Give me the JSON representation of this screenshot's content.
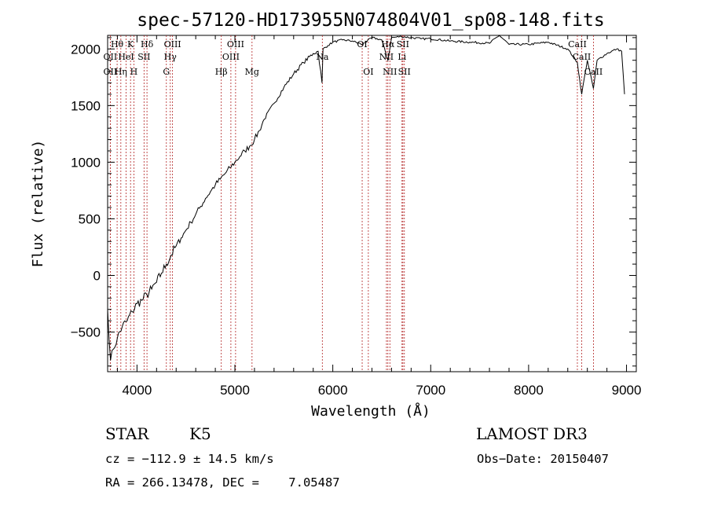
{
  "chart_data": {
    "type": "line",
    "title": "spec-57120-HD173955N074804V01_sp08-148.fits",
    "xlabel": "Wavelength (Å)",
    "ylabel": "Flux (relative)",
    "xlim": [
      3700,
      9100
    ],
    "ylim": [
      -850,
      2120
    ],
    "x_ticks": [
      4000,
      5000,
      6000,
      7000,
      8000,
      9000
    ],
    "y_ticks": [
      -500,
      0,
      500,
      1000,
      1500,
      2000
    ],
    "grid": false,
    "line_color": "#000000",
    "marker_color": "#b22222",
    "series": [
      {
        "x": [
          3700,
          3730,
          3760,
          3800,
          3850,
          3900,
          3950,
          4000,
          4050,
          4100,
          4150,
          4200,
          4250,
          4300,
          4350,
          4400,
          4450,
          4500,
          4550,
          4600,
          4650,
          4700,
          4750,
          4800,
          4850,
          4900,
          4950,
          5000,
          5050,
          5100,
          5150,
          5200,
          5250,
          5300,
          5400,
          5500,
          5600,
          5700,
          5800,
          5850,
          5890,
          5900,
          5950,
          6000,
          6100,
          6200,
          6300,
          6400,
          6500,
          6563,
          6600,
          6700,
          6800,
          6900,
          7000,
          7200,
          7400,
          7600,
          7700,
          7800,
          8000,
          8200,
          8400,
          8498,
          8542,
          8600,
          8662,
          8700,
          8800,
          8900,
          8950,
          8980
        ],
        "y": [
          -300,
          -750,
          -650,
          -550,
          -450,
          -400,
          -320,
          -250,
          -220,
          -170,
          -120,
          -60,
          20,
          100,
          180,
          260,
          330,
          400,
          470,
          540,
          610,
          680,
          740,
          800,
          850,
          900,
          950,
          1000,
          1050,
          1100,
          1140,
          1200,
          1280,
          1380,
          1520,
          1660,
          1780,
          1880,
          1960,
          1980,
          1700,
          2000,
          2030,
          2060,
          2080,
          2070,
          2040,
          2100,
          2080,
          1900,
          2100,
          2110,
          2100,
          2090,
          2090,
          2070,
          2060,
          2050,
          2120,
          2040,
          2040,
          2060,
          2000,
          1880,
          1600,
          1900,
          1650,
          1900,
          1960,
          2000,
          1980,
          1600
        ]
      }
    ],
    "line_ids": [
      {
        "x": 3797,
        "label": "Hθ",
        "row": 0
      },
      {
        "x": 3727,
        "label": "OII",
        "row": 1
      },
      {
        "x": 3727,
        "label": "OII",
        "row": 2
      },
      {
        "x": 3835,
        "label": "Hη",
        "row": 2
      },
      {
        "x": 3889,
        "label": "HeI",
        "row": 1
      },
      {
        "x": 3934,
        "label": "K",
        "row": 0
      },
      {
        "x": 3968,
        "label": "H",
        "row": 2
      },
      {
        "x": 4072,
        "label": "SII",
        "row": 1
      },
      {
        "x": 4102,
        "label": "Hδ",
        "row": 0
      },
      {
        "x": 4300,
        "label": "G",
        "row": 2
      },
      {
        "x": 4340,
        "label": "Hγ",
        "row": 1
      },
      {
        "x": 4363,
        "label": "OIII",
        "row": 0
      },
      {
        "x": 4861,
        "label": "Hβ",
        "row": 2
      },
      {
        "x": 4959,
        "label": "OIII",
        "row": 1
      },
      {
        "x": 5007,
        "label": "OIII",
        "row": 0
      },
      {
        "x": 5175,
        "label": "Mg",
        "row": 2
      },
      {
        "x": 5893,
        "label": "Na",
        "row": 1
      },
      {
        "x": 6300,
        "label": "OI",
        "row": 0
      },
      {
        "x": 6363,
        "label": "OI",
        "row": 2
      },
      {
        "x": 6548,
        "label": "NII",
        "row": 1
      },
      {
        "x": 6563,
        "label": "Hα",
        "row": 0
      },
      {
        "x": 6583,
        "label": "NII",
        "row": 2
      },
      {
        "x": 6707,
        "label": "Li",
        "row": 1
      },
      {
        "x": 6716,
        "label": "SII",
        "row": 0
      },
      {
        "x": 6731,
        "label": "SII",
        "row": 2
      },
      {
        "x": 8498,
        "label": "CaII",
        "row": 0
      },
      {
        "x": 8542,
        "label": "CaII",
        "row": 1
      },
      {
        "x": 8662,
        "label": "CaII",
        "row": 2
      }
    ]
  },
  "info": {
    "class": "STAR",
    "subclass": "K5",
    "survey": "LAMOST DR3",
    "cz": "cz = −112.9 ± 14.5 km/s",
    "obs_date": "Obs−Date: 20150407",
    "coords": "RA = 266.13478, DEC =    7.05487"
  }
}
